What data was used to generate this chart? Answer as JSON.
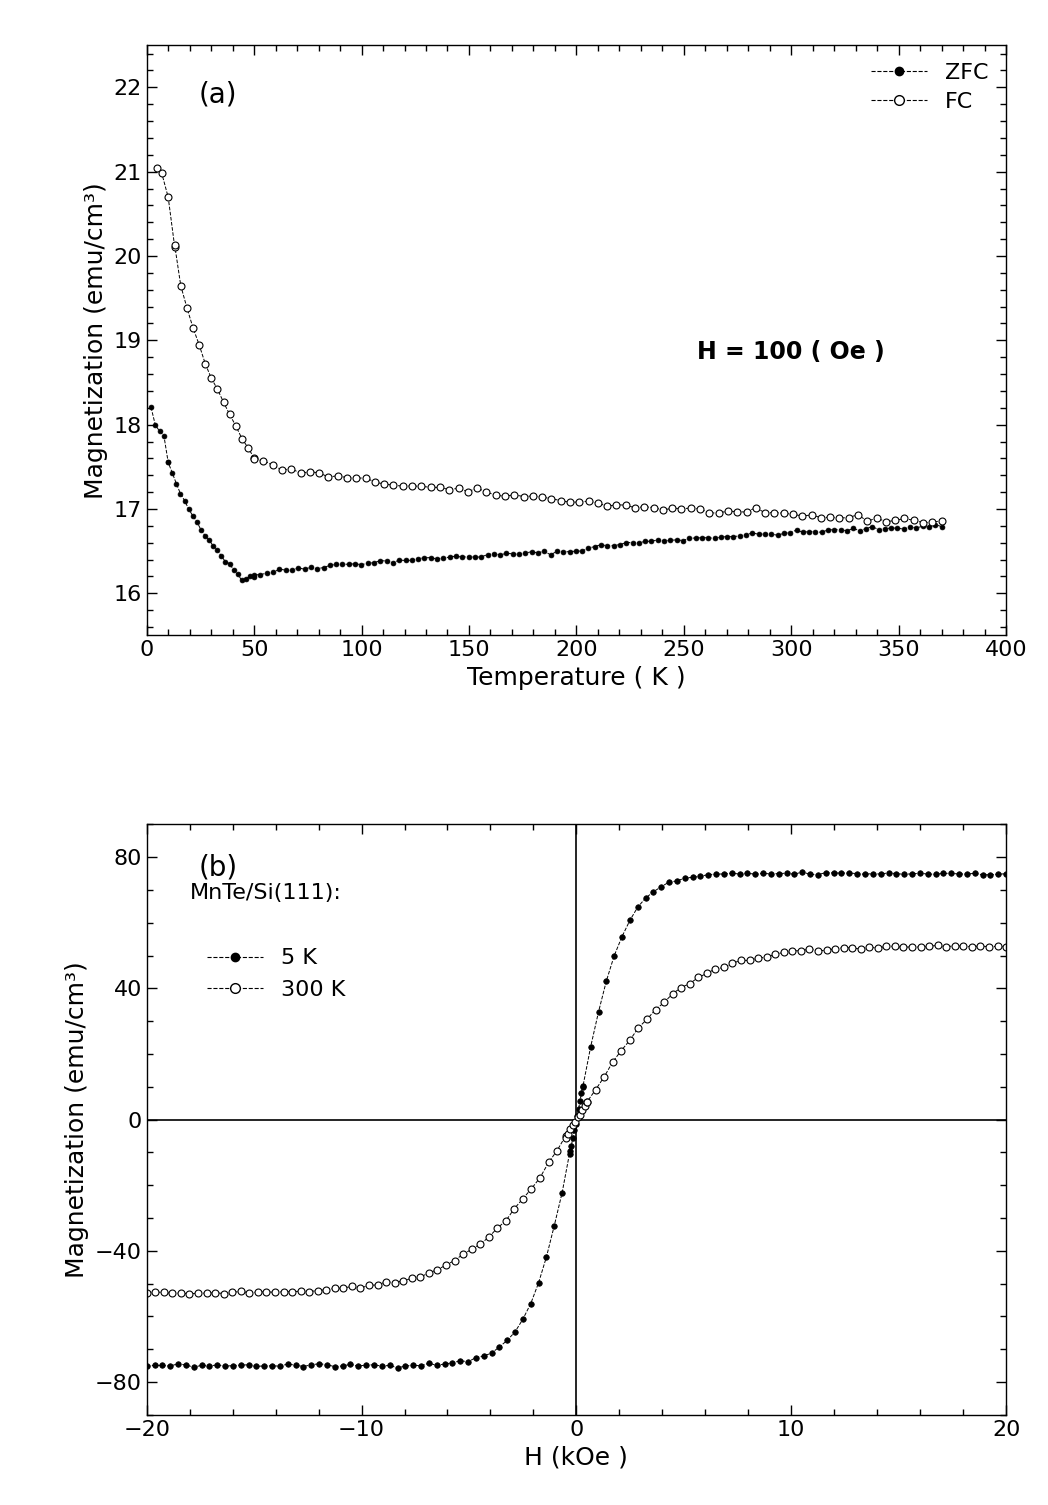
{
  "panel_a": {
    "label": "(a)",
    "xlabel": "Temperature ( K )",
    "ylabel": "Magnetization (emu/cm³)",
    "xlim": [
      0,
      400
    ],
    "ylim": [
      15.5,
      22.5
    ],
    "yticks": [
      16,
      17,
      18,
      19,
      20,
      21,
      22
    ],
    "xticks": [
      0,
      50,
      100,
      150,
      200,
      250,
      300,
      350,
      400
    ],
    "annotation": "H = 100 ( Oe )",
    "legend_labels": [
      "ZFC",
      "FC"
    ]
  },
  "panel_b": {
    "label": "(b)",
    "xlabel": "H (kOe )",
    "ylabel": "Magnetization (emu/cm³)",
    "xlim": [
      -20,
      20
    ],
    "ylim": [
      -90,
      90
    ],
    "yticks": [
      -80,
      -40,
      0,
      40,
      80
    ],
    "xticks": [
      -20,
      -10,
      0,
      10,
      20
    ],
    "annotation": "MnTe/Si(111):",
    "legend_labels": [
      "5 K",
      "300 K"
    ]
  },
  "figure_bg": "#ffffff",
  "axes_bg": "#ffffff",
  "tick_fontsize": 16,
  "label_fontsize": 18,
  "legend_fontsize": 16,
  "annotation_fontsize": 16
}
